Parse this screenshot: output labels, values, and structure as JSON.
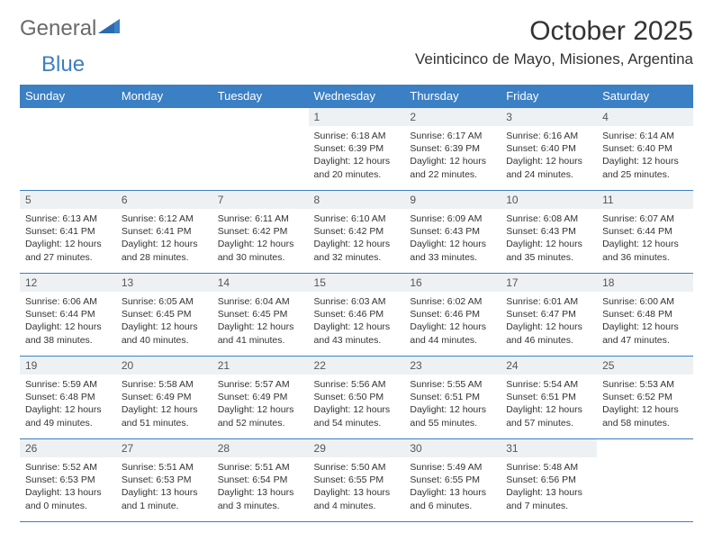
{
  "logo": {
    "general": "General",
    "blue": "Blue"
  },
  "title": "October 2025",
  "location": "Veinticinco de Mayo, Misiones, Argentina",
  "colors": {
    "header_bg": "#3b7fc4",
    "header_text": "#ffffff",
    "daynum_bg": "#eef1f4",
    "border": "#3b7fc4",
    "text": "#333333",
    "logo_gray": "#6a6a6a",
    "logo_blue": "#3b7fc4"
  },
  "weekdays": [
    "Sunday",
    "Monday",
    "Tuesday",
    "Wednesday",
    "Thursday",
    "Friday",
    "Saturday"
  ],
  "weeks": [
    [
      {
        "empty": true
      },
      {
        "empty": true
      },
      {
        "empty": true
      },
      {
        "num": "1",
        "sunrise": "6:18 AM",
        "sunset": "6:39 PM",
        "daylight": "12 hours and 20 minutes."
      },
      {
        "num": "2",
        "sunrise": "6:17 AM",
        "sunset": "6:39 PM",
        "daylight": "12 hours and 22 minutes."
      },
      {
        "num": "3",
        "sunrise": "6:16 AM",
        "sunset": "6:40 PM",
        "daylight": "12 hours and 24 minutes."
      },
      {
        "num": "4",
        "sunrise": "6:14 AM",
        "sunset": "6:40 PM",
        "daylight": "12 hours and 25 minutes."
      }
    ],
    [
      {
        "num": "5",
        "sunrise": "6:13 AM",
        "sunset": "6:41 PM",
        "daylight": "12 hours and 27 minutes."
      },
      {
        "num": "6",
        "sunrise": "6:12 AM",
        "sunset": "6:41 PM",
        "daylight": "12 hours and 28 minutes."
      },
      {
        "num": "7",
        "sunrise": "6:11 AM",
        "sunset": "6:42 PM",
        "daylight": "12 hours and 30 minutes."
      },
      {
        "num": "8",
        "sunrise": "6:10 AM",
        "sunset": "6:42 PM",
        "daylight": "12 hours and 32 minutes."
      },
      {
        "num": "9",
        "sunrise": "6:09 AM",
        "sunset": "6:43 PM",
        "daylight": "12 hours and 33 minutes."
      },
      {
        "num": "10",
        "sunrise": "6:08 AM",
        "sunset": "6:43 PM",
        "daylight": "12 hours and 35 minutes."
      },
      {
        "num": "11",
        "sunrise": "6:07 AM",
        "sunset": "6:44 PM",
        "daylight": "12 hours and 36 minutes."
      }
    ],
    [
      {
        "num": "12",
        "sunrise": "6:06 AM",
        "sunset": "6:44 PM",
        "daylight": "12 hours and 38 minutes."
      },
      {
        "num": "13",
        "sunrise": "6:05 AM",
        "sunset": "6:45 PM",
        "daylight": "12 hours and 40 minutes."
      },
      {
        "num": "14",
        "sunrise": "6:04 AM",
        "sunset": "6:45 PM",
        "daylight": "12 hours and 41 minutes."
      },
      {
        "num": "15",
        "sunrise": "6:03 AM",
        "sunset": "6:46 PM",
        "daylight": "12 hours and 43 minutes."
      },
      {
        "num": "16",
        "sunrise": "6:02 AM",
        "sunset": "6:46 PM",
        "daylight": "12 hours and 44 minutes."
      },
      {
        "num": "17",
        "sunrise": "6:01 AM",
        "sunset": "6:47 PM",
        "daylight": "12 hours and 46 minutes."
      },
      {
        "num": "18",
        "sunrise": "6:00 AM",
        "sunset": "6:48 PM",
        "daylight": "12 hours and 47 minutes."
      }
    ],
    [
      {
        "num": "19",
        "sunrise": "5:59 AM",
        "sunset": "6:48 PM",
        "daylight": "12 hours and 49 minutes."
      },
      {
        "num": "20",
        "sunrise": "5:58 AM",
        "sunset": "6:49 PM",
        "daylight": "12 hours and 51 minutes."
      },
      {
        "num": "21",
        "sunrise": "5:57 AM",
        "sunset": "6:49 PM",
        "daylight": "12 hours and 52 minutes."
      },
      {
        "num": "22",
        "sunrise": "5:56 AM",
        "sunset": "6:50 PM",
        "daylight": "12 hours and 54 minutes."
      },
      {
        "num": "23",
        "sunrise": "5:55 AM",
        "sunset": "6:51 PM",
        "daylight": "12 hours and 55 minutes."
      },
      {
        "num": "24",
        "sunrise": "5:54 AM",
        "sunset": "6:51 PM",
        "daylight": "12 hours and 57 minutes."
      },
      {
        "num": "25",
        "sunrise": "5:53 AM",
        "sunset": "6:52 PM",
        "daylight": "12 hours and 58 minutes."
      }
    ],
    [
      {
        "num": "26",
        "sunrise": "5:52 AM",
        "sunset": "6:53 PM",
        "daylight": "13 hours and 0 minutes."
      },
      {
        "num": "27",
        "sunrise": "5:51 AM",
        "sunset": "6:53 PM",
        "daylight": "13 hours and 1 minute."
      },
      {
        "num": "28",
        "sunrise": "5:51 AM",
        "sunset": "6:54 PM",
        "daylight": "13 hours and 3 minutes."
      },
      {
        "num": "29",
        "sunrise": "5:50 AM",
        "sunset": "6:55 PM",
        "daylight": "13 hours and 4 minutes."
      },
      {
        "num": "30",
        "sunrise": "5:49 AM",
        "sunset": "6:55 PM",
        "daylight": "13 hours and 6 minutes."
      },
      {
        "num": "31",
        "sunrise": "5:48 AM",
        "sunset": "6:56 PM",
        "daylight": "13 hours and 7 minutes."
      },
      {
        "empty": true
      }
    ]
  ],
  "labels": {
    "sunrise": "Sunrise: ",
    "sunset": "Sunset: ",
    "daylight": "Daylight: "
  }
}
